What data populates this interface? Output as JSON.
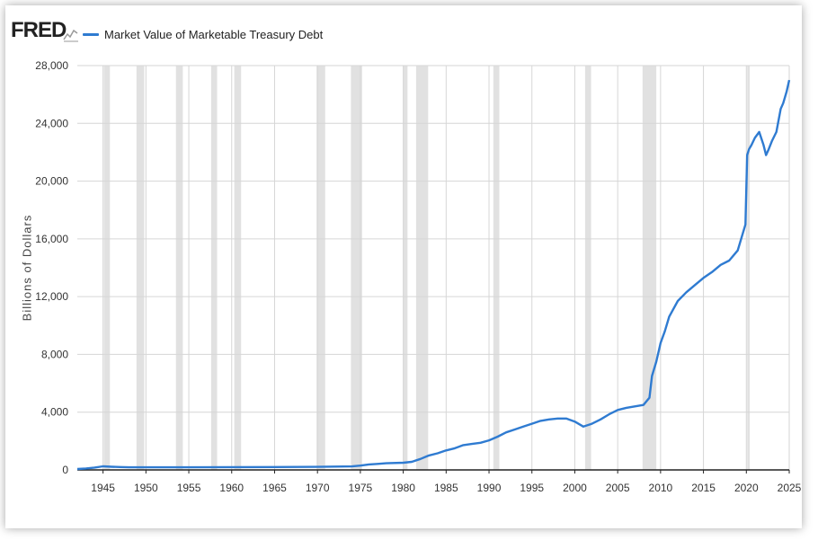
{
  "brand": {
    "logo_text": "FRED",
    "logo_icon": "sparkline-icon"
  },
  "colors": {
    "series": "#2f7bd1",
    "recession": "#e1e1e1",
    "grid": "#d6d6d6",
    "axis": "#222222"
  },
  "chart_data": {
    "type": "line",
    "title": "Market Value of Marketable Treasury Debt",
    "xlabel": "",
    "ylabel": "Billions of Dollars",
    "xlim": [
      1942,
      2025
    ],
    "ylim": [
      0,
      28000
    ],
    "grid": true,
    "legend": "top-left",
    "x_ticks": [
      1945,
      1950,
      1955,
      1960,
      1965,
      1970,
      1975,
      1980,
      1985,
      1990,
      1995,
      2000,
      2005,
      2010,
      2015,
      2020,
      2025
    ],
    "x_tick_labels": [
      "1945",
      "1950",
      "1955",
      "1960",
      "1965",
      "1970",
      "1975",
      "1980",
      "1985",
      "1990",
      "1995",
      "2000",
      "2005",
      "2010",
      "2015",
      "2020",
      "2025"
    ],
    "y_ticks": [
      0,
      4000,
      8000,
      12000,
      16000,
      20000,
      24000,
      28000
    ],
    "y_tick_labels": [
      "0",
      "4,000",
      "8,000",
      "12,000",
      "16,000",
      "20,000",
      "24,000",
      "28,000"
    ],
    "recessions": [
      [
        1945.1,
        1945.8
      ],
      [
        1948.9,
        1949.8
      ],
      [
        1953.5,
        1954.3
      ],
      [
        1957.6,
        1958.3
      ],
      [
        1960.3,
        1961.1
      ],
      [
        1969.9,
        1970.9
      ],
      [
        1973.9,
        1975.2
      ],
      [
        1980.0,
        1980.5
      ],
      [
        1981.5,
        1982.9
      ],
      [
        1990.5,
        1991.2
      ],
      [
        2001.2,
        2001.9
      ],
      [
        2007.9,
        2009.5
      ],
      [
        2020.1,
        2020.4
      ]
    ],
    "series": [
      {
        "name": "Market Value of Marketable Treasury Debt",
        "x": [
          1942,
          1943,
          1944,
          1945,
          1946,
          1947,
          1948,
          1950,
          1955,
          1960,
          1965,
          1970,
          1974,
          1975,
          1976,
          1977,
          1978,
          1980,
          1981,
          1982,
          1983,
          1984,
          1985,
          1986,
          1987,
          1988,
          1989,
          1990,
          1991,
          1992,
          1993,
          1994,
          1995,
          1996,
          1997,
          1998,
          1999,
          2000,
          2001,
          2002,
          2003,
          2004,
          2005,
          2006,
          2007,
          2008,
          2008.7,
          2009,
          2009.5,
          2010,
          2010.5,
          2011,
          2012,
          2013,
          2014,
          2015,
          2016,
          2017,
          2018,
          2019,
          2019.9,
          2020.1,
          2020.3,
          2020.6,
          2021,
          2021.5,
          2022,
          2022.3,
          2022.6,
          2023,
          2023.5,
          2024,
          2024.3,
          2024.7,
          2025
        ],
        "y": [
          60,
          100,
          160,
          250,
          220,
          200,
          180,
          180,
          180,
          190,
          200,
          210,
          240,
          300,
          380,
          420,
          460,
          500,
          560,
          760,
          1000,
          1150,
          1350,
          1500,
          1720,
          1800,
          1880,
          2050,
          2300,
          2600,
          2800,
          3000,
          3200,
          3400,
          3500,
          3560,
          3560,
          3350,
          3000,
          3200,
          3500,
          3850,
          4150,
          4300,
          4400,
          4500,
          5000,
          6500,
          7500,
          8800,
          9600,
          10600,
          11700,
          12300,
          12800,
          13300,
          13700,
          14200,
          14500,
          15200,
          17000,
          21800,
          22200,
          22500,
          23000,
          23400,
          22500,
          21800,
          22200,
          22800,
          23400,
          25000,
          25400,
          26200,
          27000
        ]
      }
    ]
  }
}
